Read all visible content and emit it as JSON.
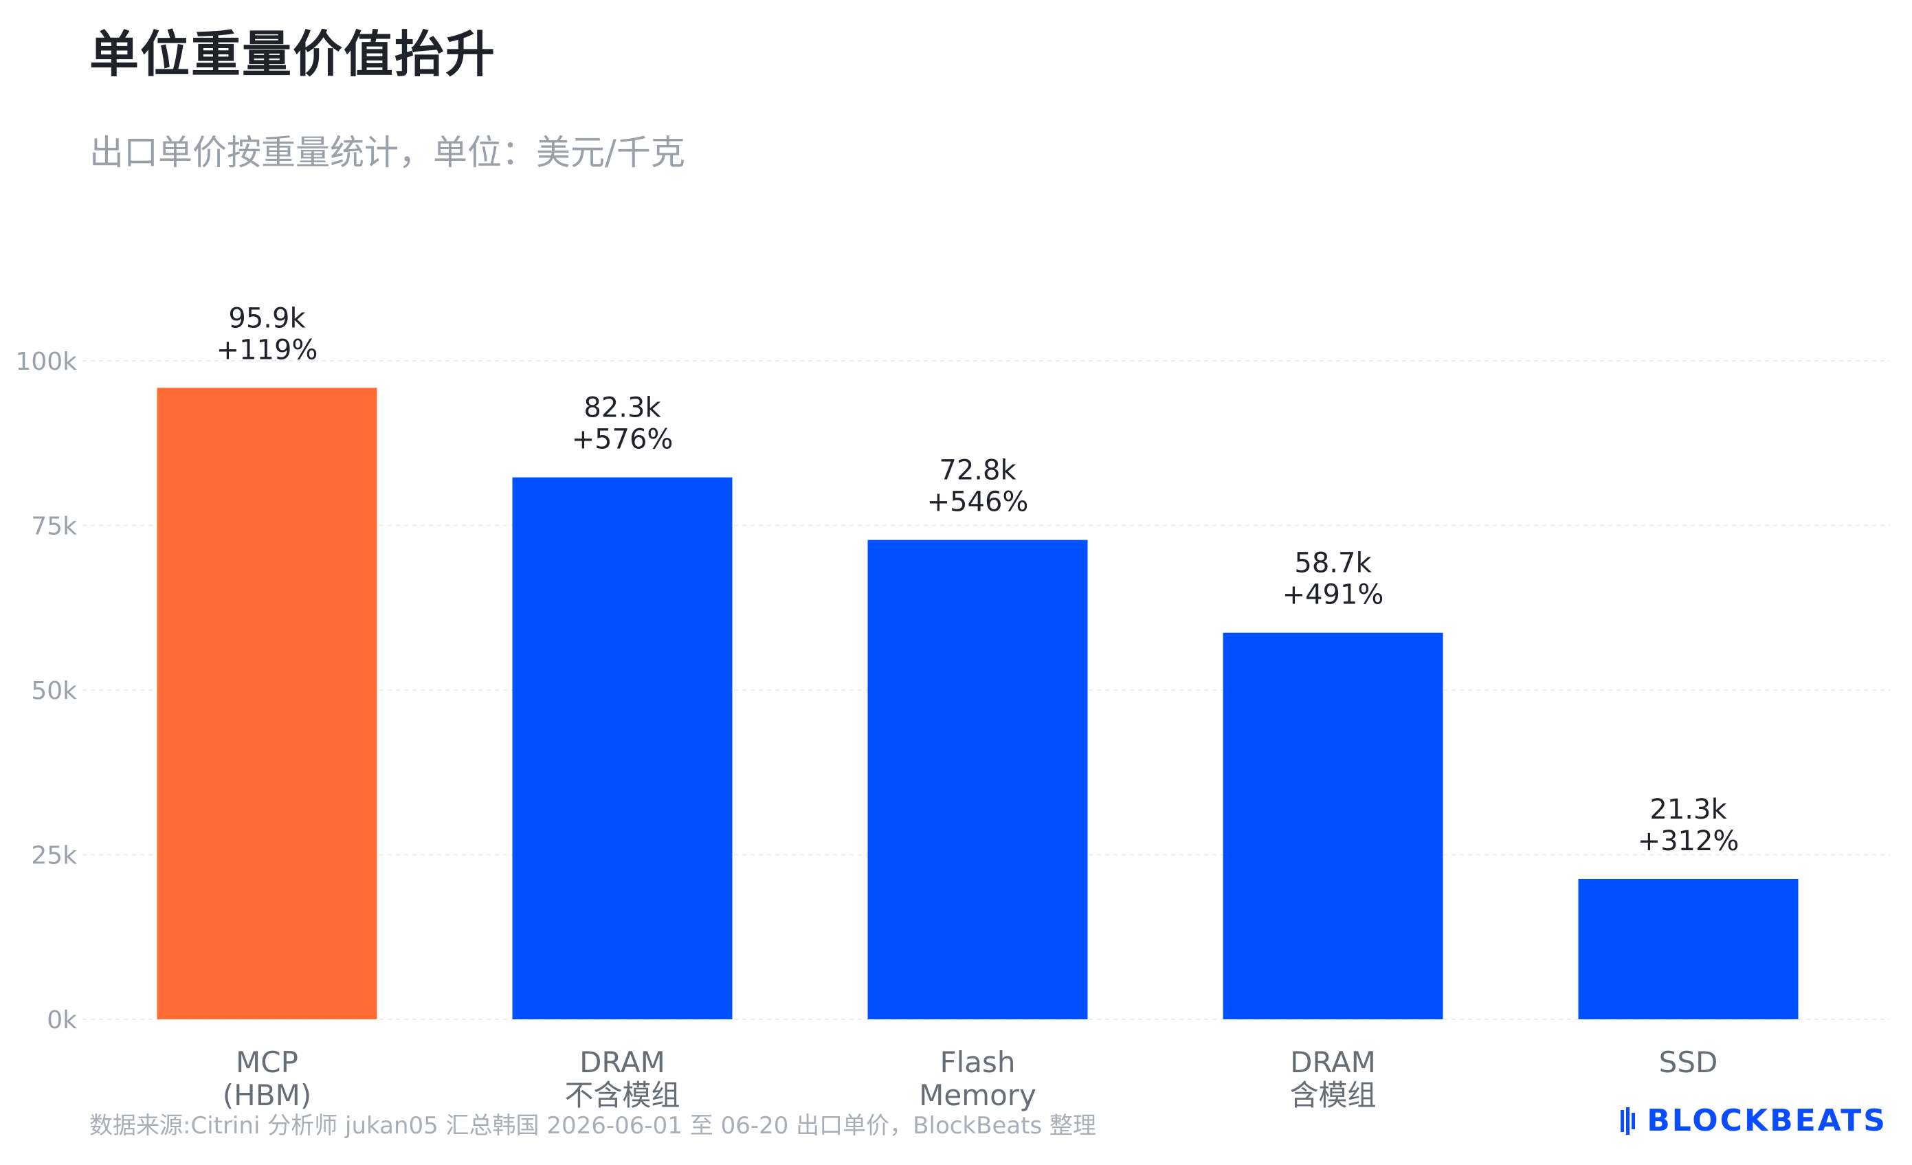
{
  "header": {
    "title": "单位重量价值抬升",
    "subtitle": "出口单价按重量统计，单位：美元/千克"
  },
  "footer": {
    "source_note": "数据来源:Citrini 分析师 jukan05 汇总韩国 2026-06-01 至 06-20 出口单价，BlockBeats 整理",
    "brand": "BLOCKBEATS",
    "brand_icon": "blockbeats-logo-icon"
  },
  "colors": {
    "highlight": "#ff6b35",
    "primary": "#0050ff",
    "grid": "#eceef1"
  },
  "chart_data": {
    "type": "bar",
    "categories": [
      [
        "MCP",
        "(HBM)"
      ],
      [
        "DRAM",
        "不含模组"
      ],
      [
        "Flash",
        "Memory"
      ],
      [
        "DRAM",
        "含模组"
      ],
      [
        "SSD"
      ]
    ],
    "values": [
      95900,
      82300,
      72800,
      58700,
      21300
    ],
    "value_labels": [
      "95.9k",
      "82.3k",
      "72.8k",
      "58.7k",
      "21.3k"
    ],
    "change_labels": [
      "+119%",
      "+576%",
      "+546%",
      "+491%",
      "+312%"
    ],
    "bar_colors": [
      "#ff6b35",
      "#0050ff",
      "#0050ff",
      "#0050ff",
      "#0050ff"
    ],
    "ylim": [
      0,
      100000
    ],
    "yticks": [
      0,
      25000,
      50000,
      75000,
      100000
    ],
    "ytick_labels": [
      "0k",
      "25k",
      "50k",
      "75k",
      "100k"
    ],
    "grid": true,
    "xlabel": "",
    "ylabel": ""
  }
}
